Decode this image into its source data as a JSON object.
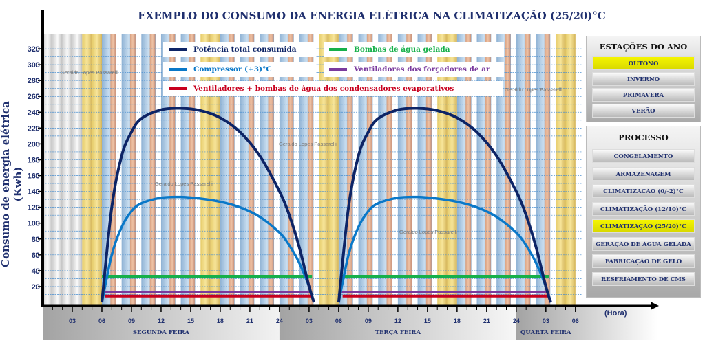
{
  "title": "EXEMPLO DO CONSUMO DA ENERGIA ELÉTRICA NA CLIMATIZAÇÃO (25/20)°C",
  "watermark": "Geraldo Lopes Passarelli",
  "seasons": {
    "title": "ESTAÇÕES DO ANO",
    "items": [
      {
        "label": "OUTONO",
        "selected": true
      },
      {
        "label": "INVERNO",
        "selected": false
      },
      {
        "label": "PRIMAVERA",
        "selected": false
      },
      {
        "label": "VERÃO",
        "selected": false
      }
    ]
  },
  "process": {
    "title": "PROCESSO",
    "items": [
      {
        "label": "CONGELAMENTO",
        "selected": false
      },
      {
        "label": "ARMAZENAGEM",
        "selected": false
      },
      {
        "label": "CLIMATIZAÇÃO (0/-2)°C",
        "selected": false
      },
      {
        "label": "CLIMATIZAÇÃO (12/10)°C",
        "selected": false
      },
      {
        "label": "CLIMATIZAÇÃO (25/20)°C",
        "selected": true
      },
      {
        "label": "GERAÇÃO DE ÁGUA GELADA",
        "selected": false
      },
      {
        "label": "FÁBRICAÇÃO DE GELO",
        "selected": false
      },
      {
        "label": "RESFRIAMENTO DE CMS",
        "selected": false
      }
    ]
  },
  "chart_data": {
    "type": "line",
    "title": "EXEMPLO DO CONSUMO DA ENERGIA ELÉTRICA NA CLIMATIZAÇÃO (25/20)°C",
    "xlabel": "(Hora)",
    "ylabel": "Consumo de energia elétrica (Kwh)",
    "xlim": [
      0,
      54
    ],
    "ylim": [
      0,
      330
    ],
    "yticks": [
      20,
      40,
      60,
      80,
      100,
      120,
      140,
      160,
      180,
      200,
      220,
      240,
      260,
      280,
      300,
      320
    ],
    "xticks": [
      {
        "x": 3,
        "label": "03"
      },
      {
        "x": 6,
        "label": "06"
      },
      {
        "x": 9,
        "label": "09"
      },
      {
        "x": 12,
        "label": "12"
      },
      {
        "x": 15,
        "label": "15"
      },
      {
        "x": 18,
        "label": "18"
      },
      {
        "x": 21,
        "label": "21"
      },
      {
        "x": 24,
        "label": "24"
      },
      {
        "x": 27,
        "label": "03"
      },
      {
        "x": 30,
        "label": "06"
      },
      {
        "x": 33,
        "label": "09"
      },
      {
        "x": 36,
        "label": "12"
      },
      {
        "x": 39,
        "label": "15"
      },
      {
        "x": 42,
        "label": "18"
      },
      {
        "x": 45,
        "label": "21"
      },
      {
        "x": 48,
        "label": "24"
      },
      {
        "x": 51,
        "label": "03"
      },
      {
        "x": 54,
        "label": "06"
      }
    ],
    "days": [
      {
        "label": "SEGUNDA FEIRA",
        "from": 0,
        "to": 24
      },
      {
        "label": "TERÇA FEIRA",
        "from": 24,
        "to": 48
      },
      {
        "label": "QUARTA FEIRA",
        "from": 48,
        "to": 54
      }
    ],
    "grid": true,
    "series": [
      {
        "name": "Potência total consumida",
        "color": "#0d2466",
        "segments": [
          [
            [
              6,
              0
            ],
            [
              7,
              120
            ],
            [
              8,
              185
            ],
            [
              9,
              215
            ],
            [
              10,
              232
            ],
            [
              12,
              243
            ],
            [
              14,
              245
            ],
            [
              16,
              242
            ],
            [
              18,
              233
            ],
            [
              20,
              215
            ],
            [
              22,
              185
            ],
            [
              24,
              140
            ],
            [
              25,
              110
            ],
            [
              26,
              70
            ],
            [
              27,
              20
            ],
            [
              27.5,
              0
            ]
          ],
          [
            [
              30,
              0
            ],
            [
              31,
              120
            ],
            [
              32,
              185
            ],
            [
              33,
              215
            ],
            [
              34,
              232
            ],
            [
              36,
              243
            ],
            [
              38,
              245
            ],
            [
              40,
              242
            ],
            [
              42,
              233
            ],
            [
              44,
              215
            ],
            [
              46,
              185
            ],
            [
              48,
              140
            ],
            [
              49,
              110
            ],
            [
              50,
              70
            ],
            [
              51,
              20
            ],
            [
              51.5,
              0
            ]
          ]
        ]
      },
      {
        "name": "Compressor (+3)°C",
        "color": "#0a78c8",
        "segments": [
          [
            [
              6,
              0
            ],
            [
              7,
              60
            ],
            [
              8,
              95
            ],
            [
              9,
              115
            ],
            [
              10,
              125
            ],
            [
              12,
              132
            ],
            [
              14,
              133
            ],
            [
              16,
              131
            ],
            [
              18,
              127
            ],
            [
              20,
              120
            ],
            [
              22,
              108
            ],
            [
              24,
              88
            ],
            [
              25,
              72
            ],
            [
              26,
              50
            ],
            [
              27,
              20
            ],
            [
              27.5,
              0
            ]
          ],
          [
            [
              30,
              0
            ],
            [
              31,
              60
            ],
            [
              32,
              95
            ],
            [
              33,
              115
            ],
            [
              34,
              125
            ],
            [
              36,
              132
            ],
            [
              38,
              133
            ],
            [
              40,
              131
            ],
            [
              42,
              127
            ],
            [
              44,
              120
            ],
            [
              46,
              108
            ],
            [
              48,
              88
            ],
            [
              49,
              72
            ],
            [
              50,
              50
            ],
            [
              51,
              20
            ],
            [
              51.5,
              0
            ]
          ]
        ]
      },
      {
        "name": "Ventiladores + bombas de água dos condensadores evaporativos",
        "color": "#c8001e",
        "segments": [
          [
            [
              6.3,
              8
            ],
            [
              27.2,
              8
            ]
          ],
          [
            [
              30.4,
              8
            ],
            [
              51.2,
              8
            ]
          ]
        ]
      },
      {
        "name": "Bombas de água gelada",
        "color": "#16b04a",
        "segments": [
          [
            [
              6,
              33
            ],
            [
              27.3,
              33
            ]
          ],
          [
            [
              30.3,
              33
            ],
            [
              51.3,
              33
            ]
          ]
        ]
      },
      {
        "name": "Ventiladores dos forçadores de ar",
        "color": "#7a3a9e",
        "segments": [
          [
            [
              6.3,
              13
            ],
            [
              27.2,
              13
            ]
          ],
          [
            [
              30.3,
              13
            ],
            [
              51.2,
              13
            ]
          ]
        ]
      }
    ]
  }
}
